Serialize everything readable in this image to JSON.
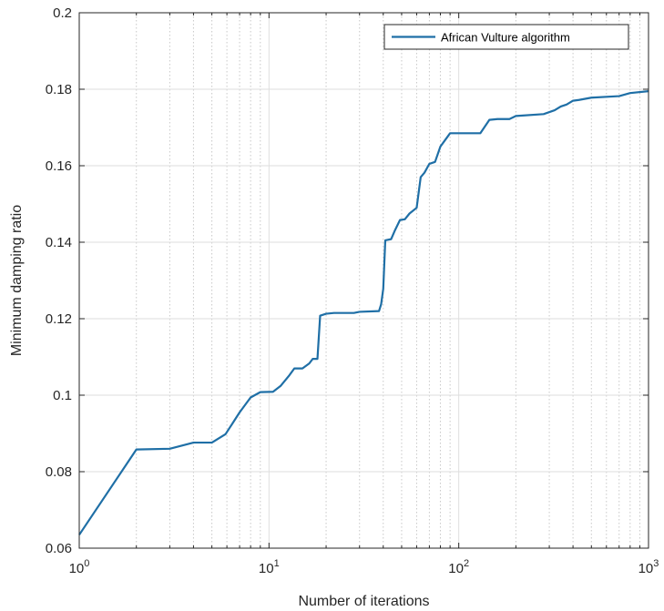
{
  "chart_data": {
    "type": "line",
    "xlabel": "Number of iterations",
    "ylabel": "Minimum damping ratio",
    "xscale": "log",
    "xlim": [
      1,
      1000
    ],
    "ylim": [
      0.06,
      0.2
    ],
    "xticks": [
      {
        "value": 1,
        "base": "10",
        "exp": "0"
      },
      {
        "value": 10,
        "base": "10",
        "exp": "1"
      },
      {
        "value": 100,
        "base": "10",
        "exp": "2"
      },
      {
        "value": 1000,
        "base": "10",
        "exp": "3"
      }
    ],
    "yticks": [
      {
        "value": 0.06,
        "label": "0.06"
      },
      {
        "value": 0.08,
        "label": "0.08"
      },
      {
        "value": 0.1,
        "label": "0.1"
      },
      {
        "value": 0.12,
        "label": "0.12"
      },
      {
        "value": 0.14,
        "label": "0.14"
      },
      {
        "value": 0.16,
        "label": "0.16"
      },
      {
        "value": 0.18,
        "label": "0.18"
      },
      {
        "value": 0.2,
        "label": "0.2"
      }
    ],
    "grid": true,
    "legend_position": "top-right",
    "series": [
      {
        "name": "African Vulture algorithm",
        "color": "#1f6fa6",
        "points": [
          [
            1,
            0.0635
          ],
          [
            2,
            0.0858
          ],
          [
            3,
            0.086
          ],
          [
            4,
            0.0876
          ],
          [
            5,
            0.0876
          ],
          [
            5.9,
            0.0898
          ],
          [
            7,
            0.0955
          ],
          [
            8,
            0.0994
          ],
          [
            9,
            0.1008
          ],
          [
            10.5,
            0.1009
          ],
          [
            11.5,
            0.1024
          ],
          [
            12.8,
            0.1052
          ],
          [
            13.6,
            0.107
          ],
          [
            15,
            0.107
          ],
          [
            16.3,
            0.1083
          ],
          [
            17,
            0.1095
          ],
          [
            18,
            0.1095
          ],
          [
            18.6,
            0.1208
          ],
          [
            20,
            0.1213
          ],
          [
            22,
            0.1215
          ],
          [
            28,
            0.1215
          ],
          [
            30,
            0.1218
          ],
          [
            38,
            0.122
          ],
          [
            39,
            0.1238
          ],
          [
            40,
            0.1278
          ],
          [
            41,
            0.1405
          ],
          [
            44,
            0.1408
          ],
          [
            46,
            0.143
          ],
          [
            49,
            0.1458
          ],
          [
            52,
            0.146
          ],
          [
            55,
            0.1475
          ],
          [
            60,
            0.149
          ],
          [
            63,
            0.157
          ],
          [
            66,
            0.1582
          ],
          [
            70,
            0.1605
          ],
          [
            75,
            0.161
          ],
          [
            80,
            0.165
          ],
          [
            85,
            0.1668
          ],
          [
            90,
            0.1685
          ],
          [
            130,
            0.1685
          ],
          [
            145,
            0.172
          ],
          [
            160,
            0.1722
          ],
          [
            185,
            0.1722
          ],
          [
            200,
            0.173
          ],
          [
            280,
            0.1735
          ],
          [
            320,
            0.1745
          ],
          [
            345,
            0.1755
          ],
          [
            370,
            0.176
          ],
          [
            400,
            0.177
          ],
          [
            430,
            0.1772
          ],
          [
            500,
            0.1778
          ],
          [
            700,
            0.1782
          ],
          [
            800,
            0.179
          ],
          [
            1000,
            0.1795
          ]
        ]
      }
    ]
  }
}
